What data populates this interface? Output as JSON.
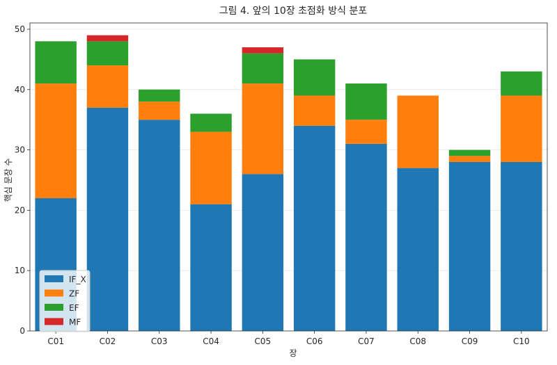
{
  "chart_data": {
    "type": "bar",
    "stacked": true,
    "title": "그림 4. 앞의 10장 초점화 방식 분포",
    "xlabel": "장",
    "ylabel": "핵심 문장 수",
    "ylim": [
      0,
      50
    ],
    "yticks": [
      0,
      10,
      20,
      30,
      40,
      50
    ],
    "grid": "y",
    "legend_position": "lower-left",
    "categories": [
      "C01",
      "C02",
      "C03",
      "C04",
      "C05",
      "C06",
      "C07",
      "C08",
      "C09",
      "C10"
    ],
    "series": [
      {
        "name": "IF_X",
        "color": "#1f77b4",
        "values": [
          22,
          37,
          35,
          21,
          26,
          34,
          31,
          27,
          28,
          28
        ]
      },
      {
        "name": "ZF",
        "color": "#ff7f0e",
        "values": [
          19,
          7,
          3,
          12,
          15,
          5,
          4,
          12,
          1,
          11
        ]
      },
      {
        "name": "EF",
        "color": "#2ca02c",
        "values": [
          7,
          4,
          2,
          3,
          5,
          6,
          6,
          0,
          1,
          4
        ]
      },
      {
        "name": "MF",
        "color": "#d62728",
        "values": [
          0,
          1,
          0,
          0,
          1,
          0,
          0,
          0,
          0,
          0
        ]
      }
    ]
  }
}
